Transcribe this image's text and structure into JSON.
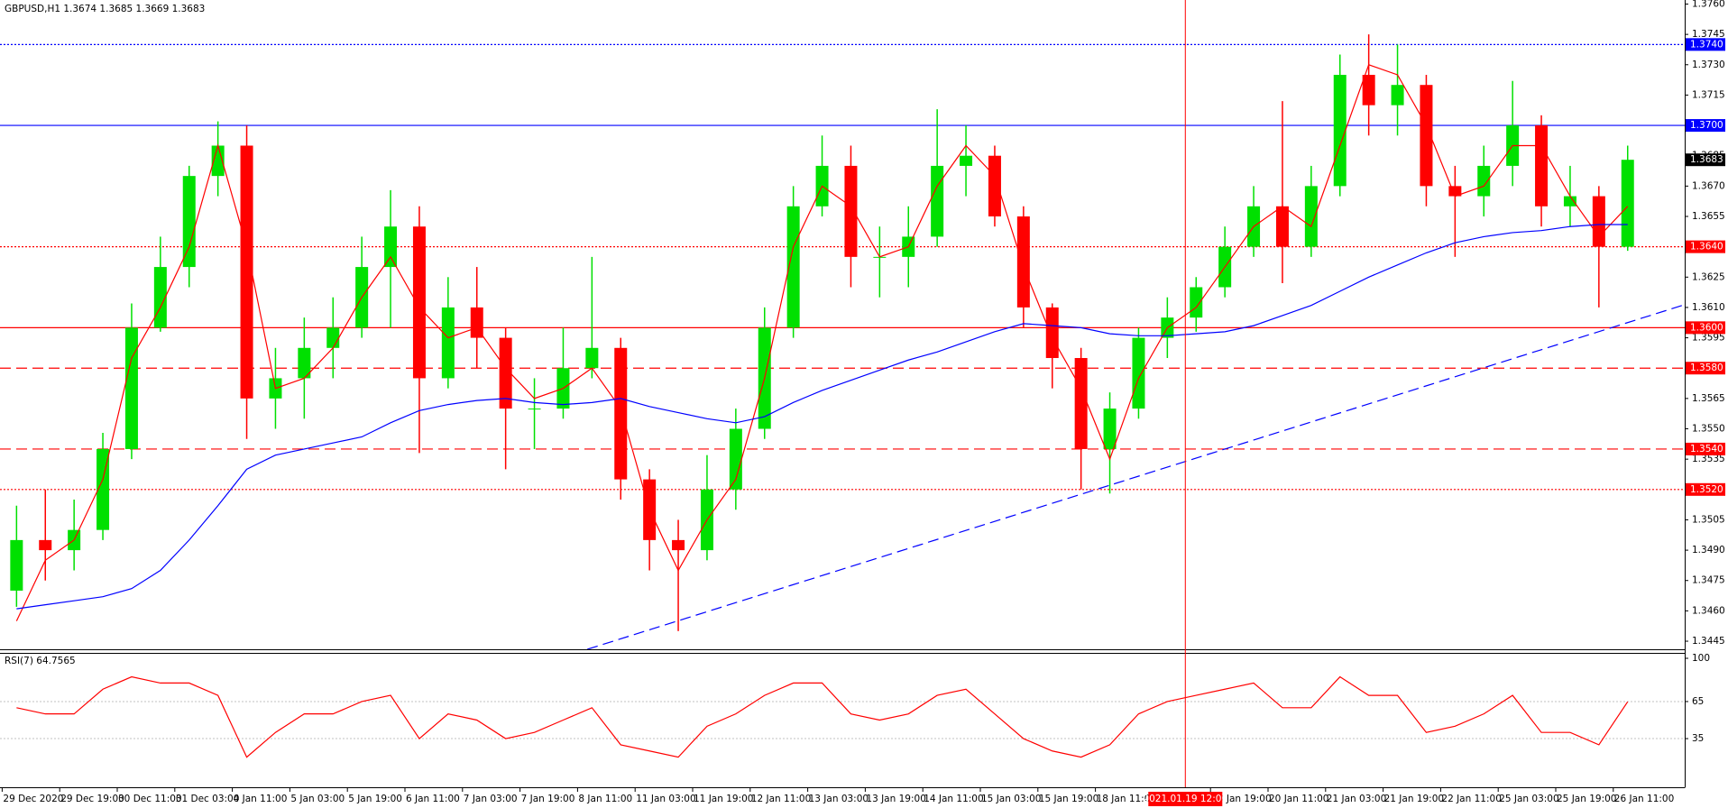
{
  "chart_data": [
    {
      "type": "candlestick",
      "title": "GBPUSD,H1  1.3674 1.3685 1.3669 1.3683",
      "categories": [
        "29 Dec 2020",
        null,
        "29 Dec 19:00",
        null,
        "30 Dec 11:00",
        null,
        "31 Dec 03:00",
        null,
        "4 Jan 11:00",
        null,
        "5 Jan 03:00",
        null,
        "5 Jan 19:00",
        null,
        "6 Jan 11:00",
        null,
        "7 Jan 03:00",
        null,
        "7 Jan 19:00",
        null,
        "8 Jan 11:00",
        null,
        "11 Jan 03:00",
        null,
        "11 Jan 19:00",
        null,
        "12 Jan 11:00",
        null,
        "13 Jan 03:00",
        null,
        "13 Jan 19:00",
        null,
        "14 Jan 11:00",
        null,
        "15 Jan 03:00",
        null,
        "15 Jan 19:00",
        null,
        "18 Jan 11:00",
        null,
        null,
        null,
        "19 Jan 19:00",
        null,
        "20 Jan 11:00",
        null,
        "21 Jan 03:00",
        null,
        "21 Jan 19:00",
        null,
        "22 Jan 11:00",
        null,
        "25 Jan 03:00",
        null,
        "25 Jan 19:00",
        null,
        "26 Jan 11:00"
      ],
      "open": [
        1.347,
        1.3495,
        1.349,
        1.35,
        1.354,
        1.36,
        1.363,
        1.3675,
        1.369,
        1.3565,
        1.3575,
        1.359,
        1.36,
        1.363,
        1.365,
        1.3575,
        1.361,
        1.3595,
        1.356,
        1.356,
        1.358,
        1.359,
        1.3525,
        1.3495,
        1.349,
        1.352,
        1.355,
        1.36,
        1.366,
        1.368,
        1.3635,
        1.3635,
        1.3645,
        1.368,
        1.3685,
        1.3655,
        1.361,
        1.3585,
        1.354,
        1.356,
        1.3595,
        1.3605,
        1.362,
        1.364,
        1.366,
        1.364,
        1.367,
        1.3725,
        1.371,
        1.372,
        1.367,
        1.3665,
        1.368,
        1.37,
        1.366,
        1.3665,
        1.364
      ],
      "high": [
        1.3512,
        1.352,
        1.3515,
        1.3548,
        1.3612,
        1.3645,
        1.368,
        1.3702,
        1.37,
        1.359,
        1.3605,
        1.3615,
        1.3645,
        1.3668,
        1.366,
        1.3625,
        1.363,
        1.36,
        1.3575,
        1.36,
        1.3635,
        1.3595,
        1.353,
        1.3505,
        1.3537,
        1.356,
        1.361,
        1.367,
        1.3695,
        1.369,
        1.365,
        1.366,
        1.3708,
        1.37,
        1.369,
        1.366,
        1.3612,
        1.359,
        1.3568,
        1.36,
        1.3615,
        1.3625,
        1.365,
        1.367,
        1.3712,
        1.368,
        1.3735,
        1.3745,
        1.374,
        1.3725,
        1.368,
        1.369,
        1.3722,
        1.3705,
        1.368,
        1.367,
        1.369
      ],
      "low": [
        1.3462,
        1.3475,
        1.348,
        1.3495,
        1.3535,
        1.3598,
        1.362,
        1.3665,
        1.3545,
        1.355,
        1.3555,
        1.3575,
        1.3595,
        1.36,
        1.3538,
        1.357,
        1.358,
        1.353,
        1.354,
        1.3555,
        1.3575,
        1.3515,
        1.348,
        1.345,
        1.3485,
        1.351,
        1.3545,
        1.3595,
        1.3655,
        1.362,
        1.3615,
        1.362,
        1.364,
        1.3665,
        1.365,
        1.36,
        1.357,
        1.352,
        1.3518,
        1.3555,
        1.3585,
        1.3598,
        1.3615,
        1.3635,
        1.3622,
        1.3635,
        1.3665,
        1.3695,
        1.3695,
        1.366,
        1.3635,
        1.3655,
        1.367,
        1.365,
        1.365,
        1.361,
        1.3638
      ],
      "close": [
        1.3495,
        1.349,
        1.35,
        1.354,
        1.36,
        1.363,
        1.3675,
        1.369,
        1.3565,
        1.3575,
        1.359,
        1.36,
        1.363,
        1.365,
        1.3575,
        1.361,
        1.3595,
        1.356,
        1.356,
        1.358,
        1.359,
        1.3525,
        1.3495,
        1.349,
        1.352,
        1.355,
        1.36,
        1.366,
        1.368,
        1.3635,
        1.3635,
        1.3645,
        1.368,
        1.3685,
        1.3655,
        1.361,
        1.3585,
        1.354,
        1.356,
        1.3595,
        1.3605,
        1.362,
        1.364,
        1.366,
        1.364,
        1.367,
        1.3725,
        1.371,
        1.372,
        1.367,
        1.3665,
        1.368,
        1.37,
        1.366,
        1.3665,
        1.364,
        1.3683
      ],
      "colors": {
        "up": "#00e000",
        "down": "#ff0000"
      },
      "lines": [
        {
          "color": "#ff0000",
          "values": [
            1.3455,
            1.3485,
            1.3495,
            1.3525,
            1.3585,
            1.361,
            1.364,
            1.369,
            1.364,
            1.357,
            1.3575,
            1.359,
            1.3615,
            1.3635,
            1.361,
            1.3595,
            1.36,
            1.358,
            1.3565,
            1.357,
            1.358,
            1.356,
            1.351,
            1.348,
            1.3505,
            1.3525,
            1.3575,
            1.364,
            1.367,
            1.366,
            1.3635,
            1.364,
            1.367,
            1.369,
            1.3675,
            1.363,
            1.3595,
            1.357,
            1.3535,
            1.3575,
            1.36,
            1.361,
            1.363,
            1.365,
            1.366,
            1.365,
            1.369,
            1.373,
            1.3725,
            1.37,
            1.3665,
            1.367,
            1.369,
            1.369,
            1.3665,
            1.3645,
            1.366
          ]
        },
        {
          "color": "#0000ff",
          "values": [
            1.3461,
            1.3463,
            1.3465,
            1.3467,
            1.3471,
            1.348,
            1.3495,
            1.3512,
            1.353,
            1.3537,
            1.354,
            1.3543,
            1.3546,
            1.3553,
            1.3559,
            1.3562,
            1.3564,
            1.3565,
            1.3563,
            1.3562,
            1.3563,
            1.3565,
            1.3561,
            1.3558,
            1.3555,
            1.3553,
            1.3556,
            1.3563,
            1.3569,
            1.3574,
            1.3579,
            1.3584,
            1.3588,
            1.3593,
            1.3598,
            1.3602,
            1.3601,
            1.36,
            1.3597,
            1.3596,
            1.3596,
            1.3597,
            1.3598,
            1.3601,
            1.3606,
            1.3611,
            1.3618,
            1.3625,
            1.3631,
            1.3637,
            1.3642,
            1.3645,
            1.3647,
            1.3648,
            1.365,
            1.3651,
            1.3651
          ]
        }
      ],
      "ylim": [
        1.3441,
        1.3762
      ],
      "yticks": [
        1.3445,
        {
          "value": 1.346,
          "label": "1.3460"
        },
        1.3475,
        {
          "value": 1.349,
          "label": "1.3490"
        },
        1.3505,
        {
          "value": 1.352,
          "label": "1.3520"
        },
        1.3535,
        {
          "value": 1.355,
          "label": "1.3550"
        },
        1.3565,
        {
          "value": 1.358,
          "label": "1.3580"
        },
        1.3595,
        {
          "value": 1.361,
          "label": "1.3610"
        },
        1.3625,
        {
          "value": 1.364,
          "label": "1.3640"
        },
        1.3655,
        {
          "value": 1.367,
          "label": "1.3670"
        },
        1.3685,
        {
          "value": 1.37,
          "label": "1.3700"
        },
        1.3715,
        {
          "value": 1.373,
          "label": "1.3730"
        },
        1.3745,
        {
          "value": 1.376,
          "label": "1.3760"
        }
      ],
      "levels": [
        {
          "value": 1.374,
          "label": "1.3740",
          "color": "#0000ff",
          "style": "dotted"
        },
        {
          "value": 1.37,
          "label": "1.3700",
          "color": "#0000ff",
          "style": "solid"
        },
        {
          "value": 1.364,
          "label": "1.3640",
          "color": "#ff0000",
          "style": "dotted"
        },
        {
          "value": 1.36,
          "label": "1.3600",
          "color": "#ff0000",
          "style": "solid"
        },
        {
          "value": 1.358,
          "label": "1.3580",
          "color": "#ff0000",
          "style": "dashed"
        },
        {
          "value": 1.354,
          "label": "1.3540",
          "color": "#ff0000",
          "style": "dashed"
        },
        {
          "value": 1.352,
          "label": "1.3520",
          "color": "#ff0000",
          "style": "dotted"
        }
      ],
      "last_price": {
        "value": 1.3683,
        "label": "1.3683"
      },
      "trendline": {
        "x": [
          20.34,
          58.51
        ],
        "values": [
          1.3441,
          1.36115
        ],
        "color": "#0000ff"
      },
      "crosshair": {
        "x": 41.125,
        "label": "2021.01.19 12:00",
        "color": "#ff0000"
      }
    },
    {
      "type": "line",
      "title": "RSI(7) 64.7565",
      "values": [
        60,
        55,
        55,
        75,
        85,
        80,
        80,
        70,
        20,
        40,
        55,
        55,
        65,
        70,
        35,
        55,
        50,
        35,
        40,
        50,
        60,
        30,
        25,
        20,
        45,
        55,
        70,
        80,
        80,
        55,
        50,
        55,
        70,
        75,
        55,
        35,
        25,
        20,
        30,
        55,
        65,
        70,
        75,
        80,
        60,
        60,
        85,
        70,
        70,
        40,
        45,
        55,
        70,
        40,
        40,
        30,
        64.8
      ],
      "color": "#ff0000",
      "ylim": [
        0,
        100
      ],
      "yticks": [
        35,
        65,
        100
      ],
      "levels": [
        35,
        65
      ]
    }
  ]
}
